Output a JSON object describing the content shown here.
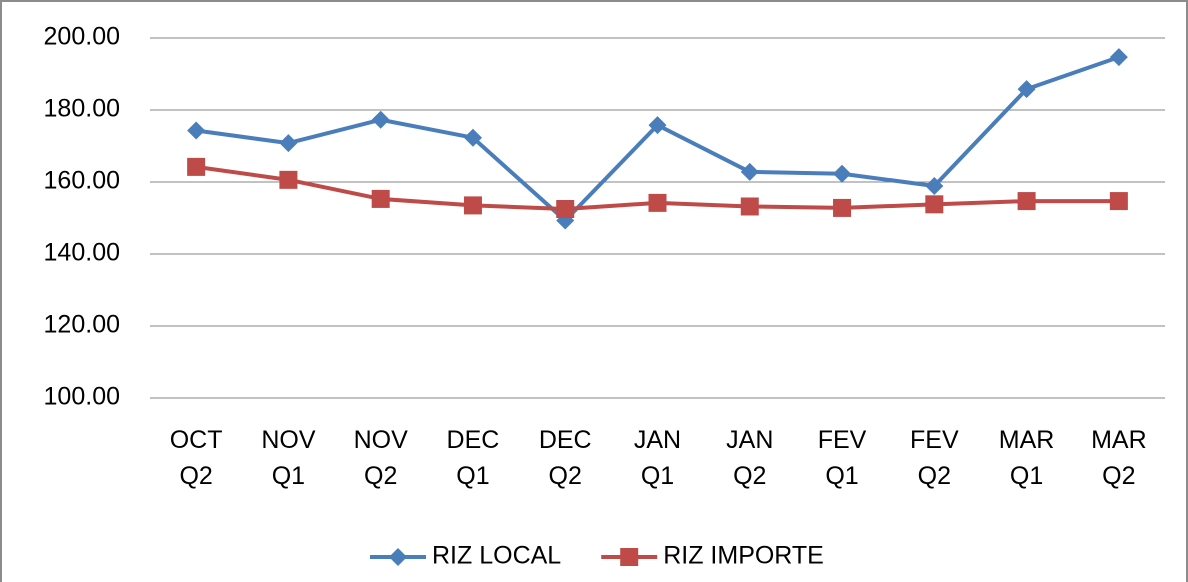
{
  "chart_data": {
    "type": "line",
    "categories": [
      "OCT Q2",
      "NOV Q1",
      "NOV Q2",
      "DEC Q1",
      "DEC Q2",
      "JAN Q1",
      "JAN Q2",
      "FEV Q1",
      "FEV Q2",
      "MAR Q1",
      "MAR Q2"
    ],
    "series": [
      {
        "name": "RIZ LOCAL",
        "color": "#4a7ebb",
        "marker": "diamond",
        "values": [
          174.3,
          170.8,
          177.3,
          172.3,
          149.3,
          175.8,
          162.8,
          162.3,
          158.9,
          185.8,
          194.7
        ]
      },
      {
        "name": "RIZ IMPORTE",
        "color": "#be4b48",
        "marker": "square",
        "values": [
          164.2,
          160.6,
          155.3,
          153.5,
          152.5,
          154.2,
          153.2,
          152.8,
          153.8,
          154.7,
          154.7
        ]
      }
    ],
    "ylim": [
      100,
      200
    ],
    "yticks": [
      {
        "value": 100,
        "label": "100.00"
      },
      {
        "value": 120,
        "label": "120.00"
      },
      {
        "value": 140,
        "label": "140.00"
      },
      {
        "value": 160,
        "label": "160.00"
      },
      {
        "value": 180,
        "label": "180.00"
      },
      {
        "value": 200,
        "label": "200.00"
      }
    ],
    "grid": true,
    "legend": "bottom"
  }
}
